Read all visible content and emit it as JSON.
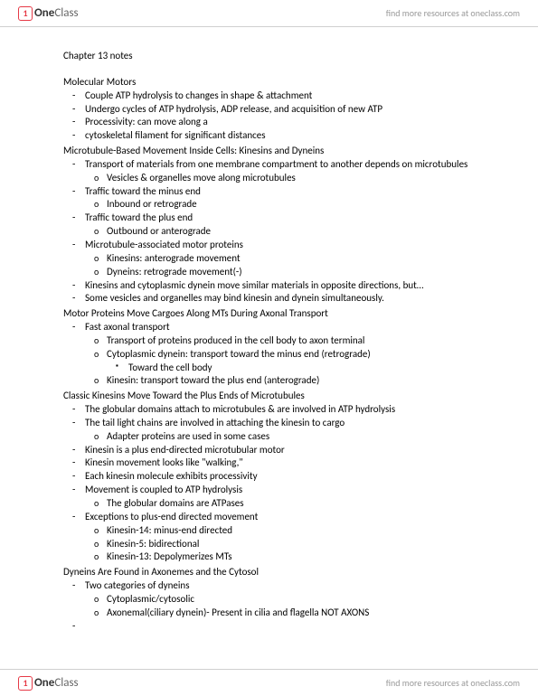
{
  "brand": {
    "prefix": "One",
    "suffix": "Class"
  },
  "tagline": "find more resources at oneclass.com",
  "chapter_title": "Chapter 13 notes",
  "sections": [
    {
      "heading": "Molecular Motors",
      "items": [
        {
          "text": "Couple ATP hydrolysis to changes in shape & attachment"
        },
        {
          "text": "Undergo cycles of ATP hydrolysis, ADP release, and acquisition of new ATP"
        },
        {
          "text": "Processivity: can move along a"
        },
        {
          "text": "cytoskeletal filament for significant distances"
        }
      ]
    },
    {
      "heading": "Microtubule-Based Movement Inside Cells: Kinesins and Dyneins",
      "items": [
        {
          "text": "Transport of materials from one membrane compartment to another depends on microtubules",
          "sub": [
            {
              "text": "Vesicles & organelles move along microtubules"
            }
          ]
        },
        {
          "text": "Traffic toward the minus end",
          "sub": [
            {
              "text": "Inbound or retrograde"
            }
          ]
        },
        {
          "text": "Traffic toward the plus end",
          "sub": [
            {
              "text": "Outbound or anterograde"
            }
          ]
        },
        {
          "text": "Microtubule-associated motor proteins",
          "sub": [
            {
              "text": "Kinesins: anterograde movement"
            },
            {
              "text": "Dyneins: retrograde movement(-)"
            }
          ]
        },
        {
          "text": "Kinesins and cytoplasmic dynein move similar materials in opposite directions, but…"
        },
        {
          "text": "Some vesicles and organelles may bind kinesin and dynein simultaneously."
        }
      ]
    },
    {
      "heading": "Motor Proteins Move Cargoes Along MTs During Axonal Transport",
      "items": [
        {
          "text": "Fast axonal transport",
          "sub": [
            {
              "text": "Transport of proteins produced in the cell body to axon terminal"
            },
            {
              "text": "Cytoplasmic dynein: transport toward the minus end (retrograde)",
              "sub2": [
                {
                  "text": "Toward the cell body"
                }
              ]
            },
            {
              "text": "Kinesin: transport toward the plus end (anterograde)"
            }
          ]
        }
      ]
    },
    {
      "heading": "Classic Kinesins Move Toward the Plus Ends of Microtubules",
      "items": [
        {
          "text": "The globular domains attach to microtubules & are involved in ATP hydrolysis"
        },
        {
          "text": "The tail light chains are involved in attaching the kinesin to cargo",
          "sub": [
            {
              "text": "Adapter proteins are used in some cases"
            }
          ]
        },
        {
          "text": "Kinesin is a plus end-directed microtubular motor"
        },
        {
          "text": "Kinesin movement looks like \"walking,\""
        },
        {
          "text": "Each kinesin molecule exhibits processivity"
        },
        {
          "text": "Movement is coupled to ATP hydrolysis",
          "sub": [
            {
              "text": "The globular domains are ATPases"
            }
          ]
        },
        {
          "text": "Exceptions to plus-end directed movement",
          "sub": [
            {
              "text": "Kinesin-14: minus-end directed"
            },
            {
              "text": "Kinesin-5: bidirectional"
            },
            {
              "text": "Kinesin-13: Depolymerizes MTs"
            }
          ]
        }
      ]
    },
    {
      "heading": "Dyneins Are Found in Axonemes and the Cytosol",
      "items": [
        {
          "text": "Two categories of dyneins",
          "sub": [
            {
              "text": "Cytoplasmic/cytosolic"
            },
            {
              "text": "Axonemal(ciliary dynein)- Present in cilia and flagella NOT AXONS"
            }
          ]
        },
        {
          "text": ""
        }
      ]
    }
  ]
}
